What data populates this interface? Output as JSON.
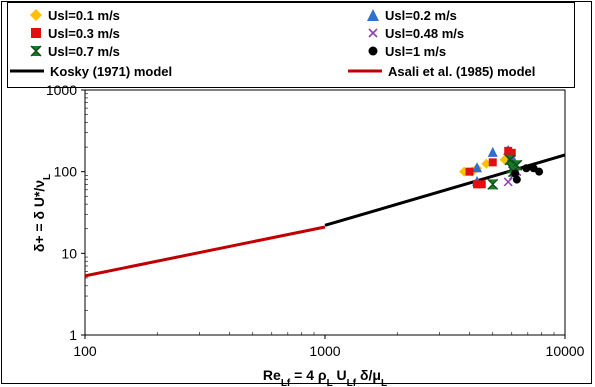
{
  "chart_data": {
    "type": "scatter",
    "xscale": "log",
    "yscale": "log",
    "xlim": [
      100,
      10000
    ],
    "ylim": [
      1,
      1000
    ],
    "x_ticks": [
      "100",
      "1000",
      "10000"
    ],
    "y_ticks": [
      "1",
      "10",
      "100",
      "1000"
    ],
    "legend_placement": "top",
    "series": [
      {
        "name": "Usl=0.1 m/s",
        "marker": "diamond",
        "color": "#FFC000",
        "points": [
          [
            3800,
            100
          ],
          [
            4300,
            110
          ],
          [
            4700,
            125
          ],
          [
            5600,
            140
          ],
          [
            4100,
            100
          ]
        ]
      },
      {
        "name": "Usl=0.2 m/s",
        "marker": "triangle",
        "color": "#2F6FD0",
        "points": [
          [
            4300,
            110
          ],
          [
            5000,
            170
          ],
          [
            5800,
            180
          ],
          [
            4300,
            75
          ],
          [
            6000,
            150
          ]
        ]
      },
      {
        "name": "Usl=0.3 m/s",
        "marker": "square",
        "color": "#E01010",
        "points": [
          [
            4000,
            100
          ],
          [
            4300,
            70
          ],
          [
            4500,
            70
          ],
          [
            5000,
            130
          ],
          [
            5800,
            180
          ],
          [
            6000,
            170
          ]
        ]
      },
      {
        "name": "Usl=0.48 m/s",
        "marker": "x",
        "color": "#9040B0",
        "points": [
          [
            5800,
            75
          ],
          [
            6100,
            90
          ],
          [
            6300,
            100
          ]
        ]
      },
      {
        "name": "Usl=0.7 m/s",
        "marker": "hourglass",
        "color": "#1A7A2A",
        "points": [
          [
            5000,
            70
          ],
          [
            5900,
            140
          ],
          [
            6000,
            110
          ],
          [
            6300,
            120
          ],
          [
            6100,
            100
          ]
        ]
      },
      {
        "name": "Usl=1 m/s",
        "marker": "circle",
        "color": "#000000",
        "points": [
          [
            6300,
            80
          ],
          [
            6900,
            110
          ],
          [
            7400,
            110
          ],
          [
            7800,
            100
          ],
          [
            6200,
            95
          ]
        ]
      }
    ],
    "lines": [
      {
        "name": "Kosky (1971) model",
        "color": "#000000",
        "x": [
          1000,
          10000
        ],
        "y": [
          22,
          160
        ]
      },
      {
        "name": "Asali et al. (1985) model",
        "color": "#C00000",
        "x": [
          100,
          1000
        ],
        "y": [
          5.3,
          21
        ]
      }
    ]
  }
}
